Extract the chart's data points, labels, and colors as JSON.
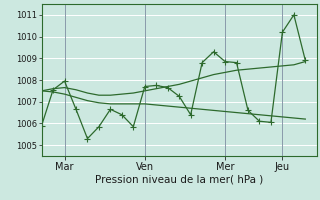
{
  "xlabel": "Pression niveau de la mer( hPa )",
  "bg_color": "#cce8e0",
  "grid_color": "#ffffff",
  "line_color": "#2d6a2d",
  "ylim": [
    1004.5,
    1011.5
  ],
  "yticks": [
    1005,
    1006,
    1007,
    1008,
    1009,
    1010,
    1011
  ],
  "xtick_labels": [
    "Mar",
    "Ven",
    "Mer",
    "Jeu"
  ],
  "xtick_positions": [
    2,
    9,
    16,
    21
  ],
  "xlim": [
    0,
    24
  ],
  "series1_x": [
    0,
    1,
    2,
    3,
    4,
    5,
    6,
    7,
    8,
    9,
    10,
    11,
    12,
    13,
    14,
    15,
    16,
    17,
    18,
    19,
    20,
    21,
    22,
    23
  ],
  "series1_y": [
    1005.9,
    1007.55,
    1007.95,
    1006.65,
    1005.3,
    1005.85,
    1006.65,
    1006.4,
    1005.85,
    1007.7,
    1007.75,
    1007.65,
    1007.25,
    1006.4,
    1008.8,
    1009.3,
    1008.85,
    1008.8,
    1006.6,
    1006.1,
    1006.05,
    1010.2,
    1011.0,
    1008.9
  ],
  "series2_x": [
    0,
    1,
    2,
    3,
    4,
    5,
    6,
    7,
    8,
    9,
    10,
    11,
    12,
    13,
    14,
    15,
    16,
    17,
    18,
    19,
    20,
    21,
    22,
    23
  ],
  "series2_y": [
    1007.5,
    1007.6,
    1007.65,
    1007.55,
    1007.4,
    1007.3,
    1007.3,
    1007.35,
    1007.4,
    1007.5,
    1007.6,
    1007.7,
    1007.8,
    1007.95,
    1008.1,
    1008.25,
    1008.35,
    1008.45,
    1008.5,
    1008.55,
    1008.6,
    1008.65,
    1008.7,
    1008.85
  ],
  "series3_x": [
    0,
    1,
    2,
    3,
    4,
    5,
    6,
    7,
    8,
    9,
    10,
    11,
    12,
    13,
    14,
    15,
    16,
    17,
    18,
    19,
    20,
    21,
    22,
    23
  ],
  "series3_y": [
    1007.5,
    1007.45,
    1007.35,
    1007.2,
    1007.05,
    1006.95,
    1006.9,
    1006.9,
    1006.9,
    1006.9,
    1006.85,
    1006.8,
    1006.75,
    1006.7,
    1006.65,
    1006.6,
    1006.55,
    1006.5,
    1006.45,
    1006.4,
    1006.35,
    1006.3,
    1006.25,
    1006.2
  ],
  "vline_color": "#8899aa",
  "vlines_x": [
    2,
    9,
    16,
    21
  ],
  "marker_size": 2.5,
  "line_width": 0.9
}
